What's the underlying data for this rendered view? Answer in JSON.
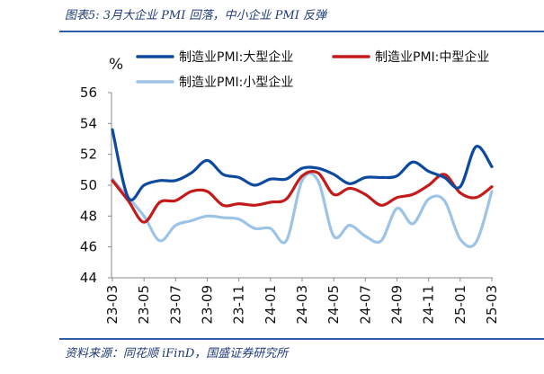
{
  "header": {
    "title": "图表5:  3月大企业 PMI 回落，中小企业 PMI 反弹"
  },
  "footer": {
    "source": "资料来源：同花顺 iFinD，国盛证券研究所"
  },
  "chart_data": {
    "type": "line",
    "unit_label": "%",
    "ylim": [
      44,
      56
    ],
    "y_ticks": [
      44,
      46,
      48,
      50,
      52,
      54,
      56
    ],
    "legend_position": "top",
    "grid": false,
    "x": [
      "23-03",
      "23-04",
      "23-05",
      "23-06",
      "23-07",
      "23-08",
      "23-09",
      "23-10",
      "23-11",
      "23-12",
      "24-01",
      "24-02",
      "24-03",
      "24-04",
      "24-05",
      "24-06",
      "24-07",
      "24-08",
      "24-09",
      "24-10",
      "24-11",
      "24-12",
      "25-01",
      "25-02",
      "25-03"
    ],
    "x_tick_labels": [
      "23-03",
      "23-05",
      "23-07",
      "23-09",
      "23-11",
      "24-01",
      "24-03",
      "24-05",
      "24-07",
      "24-09",
      "24-11",
      "25-01",
      "25-03"
    ],
    "series": [
      {
        "name": "制造业PMI:大型企业",
        "color": "#0d4a9e",
        "values": [
          53.6,
          49.2,
          50.0,
          50.3,
          50.3,
          50.8,
          51.6,
          50.7,
          50.5,
          50.0,
          50.4,
          50.4,
          51.1,
          51.1,
          50.7,
          50.1,
          50.5,
          50.5,
          50.6,
          51.5,
          50.9,
          50.5,
          49.9,
          52.5,
          51.2
        ]
      },
      {
        "name": "制造业PMI:中型企业",
        "color": "#c41a1a",
        "values": [
          50.3,
          49.0,
          47.6,
          48.9,
          49.0,
          49.6,
          49.6,
          48.7,
          48.8,
          48.7,
          48.9,
          49.1,
          50.6,
          50.8,
          49.4,
          49.8,
          49.4,
          48.7,
          49.2,
          49.4,
          50.0,
          50.7,
          49.5,
          49.2,
          49.9
        ]
      },
      {
        "name": "制造业PMI:小型企业",
        "color": "#9dc3e6",
        "values": [
          50.4,
          49.2,
          48.0,
          46.4,
          47.4,
          47.7,
          48.0,
          47.9,
          47.8,
          47.2,
          47.2,
          46.4,
          50.3,
          50.3,
          46.7,
          47.4,
          46.7,
          46.4,
          48.5,
          47.5,
          49.1,
          49.0,
          46.5,
          46.3,
          49.6
        ]
      }
    ]
  }
}
